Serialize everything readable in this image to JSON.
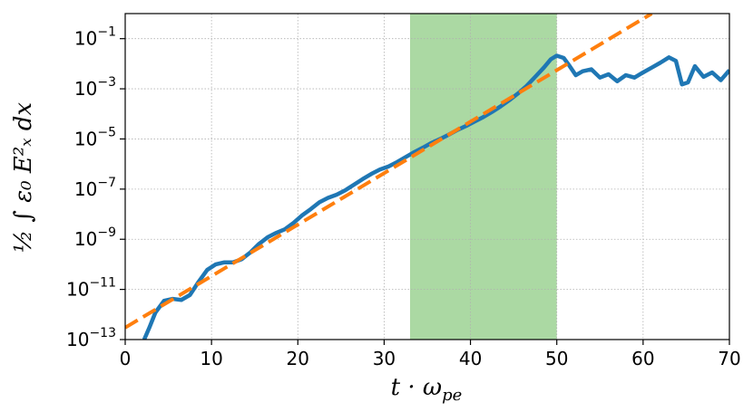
{
  "chart_data": {
    "type": "line",
    "xlabel": "t · ω",
    "xlabel_sub": "pe",
    "ylabel": "½ ∫ ε₀ E²ₓ dx",
    "xlim": [
      0,
      70
    ],
    "ylim": [
      1e-13,
      1.0
    ],
    "yscale": "log",
    "grid": true,
    "x_ticks": [
      "0",
      "10",
      "20",
      "30",
      "40",
      "50",
      "60",
      "70"
    ],
    "y_ticks": [
      {
        "base": "10",
        "exp": "−1"
      },
      {
        "base": "10",
        "exp": "−3"
      },
      {
        "base": "10",
        "exp": "−5"
      },
      {
        "base": "10",
        "exp": "−7"
      },
      {
        "base": "10",
        "exp": "−9"
      },
      {
        "base": "10",
        "exp": "−11"
      },
      {
        "base": "10",
        "exp": "−13"
      }
    ],
    "shaded_region": {
      "x": [
        33,
        50
      ],
      "color": "#abd9a3"
    },
    "series": [
      {
        "color": "#1f77b4",
        "style": "solid",
        "x": [
          2.2,
          2.8,
          3.5,
          4.5,
          5.5,
          6.5,
          7.5,
          8.5,
          9.5,
          10.5,
          11.5,
          12.5,
          13.5,
          14.5,
          15.5,
          16.5,
          17.5,
          18.5,
          19.5,
          20.5,
          21.5,
          22.5,
          23.5,
          24.5,
          25.5,
          26.5,
          27.5,
          28.5,
          29.5,
          30.5,
          31.5,
          32.5,
          33.5,
          34.5,
          35.5,
          36.5,
          37.5,
          38.5,
          39.5,
          40.5,
          41.5,
          42.5,
          43.5,
          44.5,
          45.5,
          46.5,
          47.5,
          48.5,
          49.3,
          50.0,
          50.8,
          51.5,
          52.2,
          53.0,
          54.0,
          55.0,
          56.0,
          57.0,
          58.0,
          59.0,
          60.0,
          61.0,
          62.0,
          63.0,
          63.8,
          64.5,
          65.2,
          66.0,
          67.0,
          68.0,
          69.0,
          70.0
        ],
        "y": [
          1e-13,
          3e-13,
          1.2e-12,
          3.5e-12,
          4.2e-12,
          3.8e-12,
          6e-12,
          2e-11,
          6e-11,
          1e-10,
          1.2e-10,
          1.2e-10,
          1.6e-10,
          3e-10,
          6.5e-10,
          1.2e-09,
          1.8e-09,
          2.5e-09,
          4.5e-09,
          9e-09,
          1.6e-08,
          3e-08,
          4.5e-08,
          6e-08,
          9e-08,
          1.5e-07,
          2.5e-07,
          4e-07,
          6e-07,
          8e-07,
          1.2e-06,
          1.9e-06,
          3e-06,
          4.5e-06,
          7e-06,
          1e-05,
          1.5e-05,
          2.3e-05,
          3.3e-05,
          5e-05,
          7.5e-05,
          0.00012,
          0.0002,
          0.00035,
          0.00065,
          0.0013,
          0.003,
          0.007,
          0.015,
          0.021,
          0.017,
          0.008,
          0.0035,
          0.005,
          0.006,
          0.0028,
          0.0038,
          0.002,
          0.0035,
          0.0028,
          0.0045,
          0.007,
          0.011,
          0.018,
          0.013,
          0.0015,
          0.0018,
          0.008,
          0.003,
          0.0045,
          0.0022,
          0.0055
        ]
      },
      {
        "color": "#ff7f0e",
        "style": "dashed",
        "x": [
          0,
          61
        ],
        "y": [
          3e-13,
          1.0
        ]
      }
    ]
  }
}
